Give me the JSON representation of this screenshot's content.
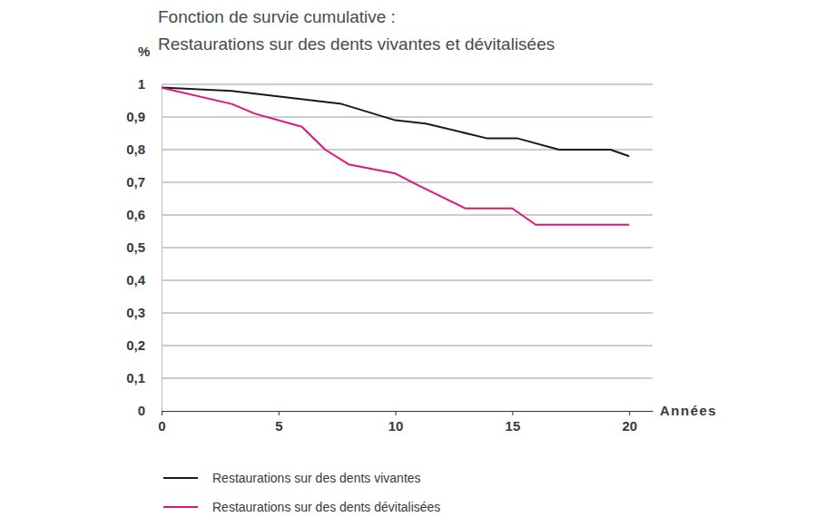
{
  "chart_data": {
    "type": "line",
    "title": "Fonction de survie cumulative :",
    "subtitle": "Restaurations sur des dents vivantes et dévitalisées",
    "y_label": "%",
    "x_label": "Années",
    "xlim": [
      0,
      21
    ],
    "xticks": [
      0,
      5,
      10,
      15,
      20
    ],
    "ylim": [
      0,
      1
    ],
    "yticks": [
      0,
      {
        "value": 0.1,
        "label": "0,1"
      },
      {
        "value": 0.2,
        "label": "0,2"
      },
      {
        "value": 0.3,
        "label": "0,3"
      },
      {
        "value": 0.4,
        "label": "0,4"
      },
      {
        "value": 0.5,
        "label": "0,5"
      },
      {
        "value": 0.6,
        "label": "0,6"
      },
      {
        "value": 0.7,
        "label": "0,7"
      },
      {
        "value": 0.8,
        "label": "0,8"
      },
      {
        "value": 0.9,
        "label": "0,9"
      },
      1
    ],
    "grid": true,
    "legend": "bottom",
    "series": [
      {
        "name": "Restaurations sur des dents vivantes",
        "color": "#1a1a1a",
        "x": [
          0,
          3,
          7.7,
          10,
          11.3,
          13.9,
          15.2,
          17,
          19.2,
          20
        ],
        "values": [
          0.99,
          0.98,
          0.94,
          0.89,
          0.88,
          0.835,
          0.835,
          0.8,
          0.8,
          0.78
        ]
      },
      {
        "name": "Restaurations sur des dents dévitalisées",
        "color": "#e0157a",
        "x": [
          0,
          3,
          4,
          6,
          7,
          8,
          10,
          11,
          13,
          15,
          16,
          20
        ],
        "values": [
          0.99,
          0.94,
          0.91,
          0.87,
          0.8,
          0.755,
          0.727,
          0.69,
          0.62,
          0.62,
          0.57,
          0.57
        ]
      }
    ]
  }
}
